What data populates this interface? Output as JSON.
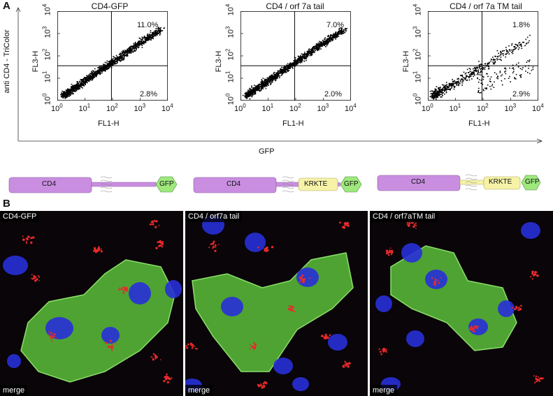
{
  "panels": {
    "a": "A",
    "b": "B"
  },
  "flow": {
    "y_axis_label": "anti CD4 - TriColor",
    "x_axis_label": "GFP",
    "plots": [
      {
        "title": "CD4-GFP",
        "upper_right": "11.0%",
        "lower_right": "2.8%",
        "ylabel": "FL3-H",
        "xlabel": "FL1-H"
      },
      {
        "title": "CD4 / orf 7a tail",
        "upper_right": "7.0%",
        "lower_right": "2.0%",
        "ylabel": "FL3-H",
        "xlabel": "FL1-H"
      },
      {
        "title": "CD4 / orf 7a TM tail",
        "upper_right": "1.8%",
        "lower_right": "2.9%",
        "ylabel": "FL3-H",
        "xlabel": "FL1-H"
      }
    ],
    "tick_base": "10",
    "tick_exps": [
      "0",
      "1",
      "2",
      "3",
      "4"
    ]
  },
  "constructs": [
    {
      "domain": "CD4",
      "tag": "GFP",
      "motif": ""
    },
    {
      "domain": "CD4",
      "tag": "GFP",
      "motif": "KRKTE"
    },
    {
      "domain": "CD4",
      "tag": "GFP",
      "motif": "KRKTE"
    }
  ],
  "images": [
    {
      "label": "CD4-GFP",
      "merge": "merge"
    },
    {
      "label": "CD4 / orf7a tail",
      "merge": "merge"
    },
    {
      "label": "CD4 / orf7aTM tail",
      "merge": "merge"
    }
  ],
  "colors": {
    "construct_body": "#c98ee0",
    "gfp": "#9ee87c",
    "motif": "#f6f3a8",
    "nucleus": "#2730d8",
    "cell": "#5cc03a",
    "golgi": "#e82a2a"
  }
}
